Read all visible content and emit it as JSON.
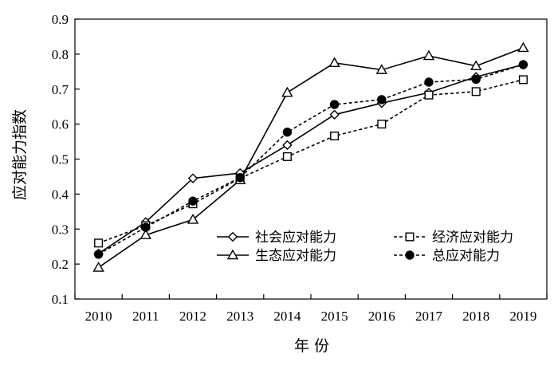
{
  "chart_data": {
    "type": "line",
    "xlabel": "年 份",
    "ylabel": "应对能力指数",
    "x": [
      "2010",
      "2011",
      "2012",
      "2013",
      "2014",
      "2015",
      "2016",
      "2017",
      "2018",
      "2019"
    ],
    "ylim": [
      0.1,
      0.9
    ],
    "yticks": [
      "0.1",
      "0.2",
      "0.3",
      "0.4",
      "0.5",
      "0.6",
      "0.7",
      "0.8",
      "0.9"
    ],
    "grid": false,
    "legend_position": "bottom-right",
    "series": [
      {
        "name": "社会应对能力",
        "marker": "diamond-open",
        "line": "solid",
        "values": [
          0.23,
          0.32,
          0.445,
          0.46,
          0.54,
          0.627,
          0.66,
          0.69,
          0.735,
          0.77
        ]
      },
      {
        "name": "经济应对能力",
        "marker": "square-open",
        "line": "dashed",
        "values": [
          0.26,
          0.31,
          0.372,
          0.445,
          0.507,
          0.566,
          0.6,
          0.683,
          0.693,
          0.727
        ]
      },
      {
        "name": "生态应对能力",
        "marker": "triangle-open",
        "line": "solid",
        "values": [
          0.19,
          0.283,
          0.327,
          0.44,
          0.69,
          0.775,
          0.755,
          0.795,
          0.766,
          0.818
        ]
      },
      {
        "name": "总应对能力",
        "marker": "circle-filled",
        "line": "dashed",
        "values": [
          0.228,
          0.305,
          0.38,
          0.447,
          0.577,
          0.656,
          0.67,
          0.72,
          0.728,
          0.77
        ]
      }
    ]
  }
}
